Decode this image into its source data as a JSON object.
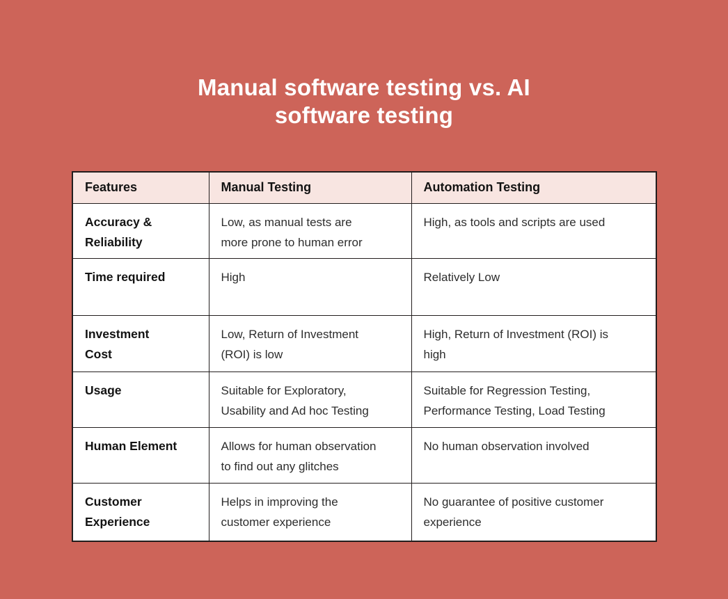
{
  "page": {
    "background_color": "#cd6459",
    "title": "Manual software testing vs. AI\nsoftware testing",
    "title_color": "#ffffff"
  },
  "table": {
    "border_color": "#221d1d",
    "header_background": "#f8e5e1",
    "body_background": "#ffffff",
    "headers": [
      "Features",
      "Manual Testing",
      "Automation Testing"
    ],
    "rows": [
      {
        "feature": "Accuracy &\nReliability",
        "manual": "Low, as manual tests are\nmore prone to human error",
        "automation": "High, as tools and scripts are used"
      },
      {
        "feature": "Time required",
        "manual": "High",
        "automation": "Relatively Low"
      },
      {
        "feature": "Investment\nCost",
        "manual": "Low, Return of Investment\n(ROI) is low",
        "automation": "High, Return of Investment (ROI) is\nhigh"
      },
      {
        "feature": "Usage",
        "manual": "Suitable for Exploratory,\nUsability and Ad hoc Testing",
        "automation": "Suitable for Regression Testing,\nPerformance Testing, Load Testing"
      },
      {
        "feature": "Human Element",
        "manual": "Allows for human observation\nto find out any glitches",
        "automation": "No human observation involved"
      },
      {
        "feature": "Customer\nExperience",
        "manual": "Helps in improving the\ncustomer experience",
        "automation": "No guarantee of positive customer\nexperience"
      }
    ]
  }
}
